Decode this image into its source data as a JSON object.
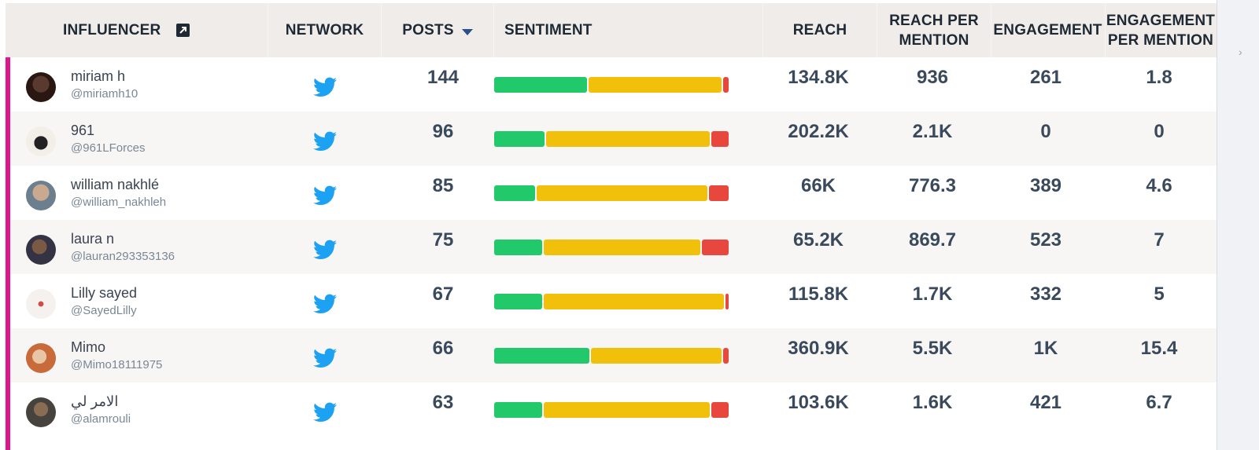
{
  "columns": {
    "influencer": "INFLUENCER",
    "network": "NETWORK",
    "posts": "POSTS",
    "sentiment": "SENTIMENT",
    "reach": "REACH",
    "reach_per_mention": "REACH PER MENTION",
    "engagement": "ENGAGEMENT",
    "engagement_per_mention": "ENGAGEMENT PER MENTION"
  },
  "colors": {
    "accent": "#e0158a",
    "positive": "#21c96a",
    "neutral": "#f1c00a",
    "negative": "#e8473e",
    "twitter": "#1da1f2"
  },
  "rows": [
    {
      "name": "miriam h",
      "handle": "@miriamh10",
      "network": "twitter-icon",
      "posts": "144",
      "sentiment": {
        "positive": 0.4,
        "neutral": 0.57,
        "negative": 0.03
      },
      "reach": "134.8K",
      "reach_per_mention": "936",
      "engagement": "261",
      "engagement_per_mention": "1.8"
    },
    {
      "name": "961",
      "handle": "@961LForces",
      "network": "twitter-icon",
      "posts": "96",
      "sentiment": {
        "positive": 0.22,
        "neutral": 0.7,
        "negative": 0.08
      },
      "reach": "202.2K",
      "reach_per_mention": "2.1K",
      "engagement": "0",
      "engagement_per_mention": "0"
    },
    {
      "name": "william nakhlé",
      "handle": "@william_nakhleh",
      "network": "twitter-icon",
      "posts": "85",
      "sentiment": {
        "positive": 0.18,
        "neutral": 0.73,
        "negative": 0.09
      },
      "reach": "66K",
      "reach_per_mention": "776.3",
      "engagement": "389",
      "engagement_per_mention": "4.6"
    },
    {
      "name": "laura n",
      "handle": "@lauran293353136",
      "network": "twitter-icon",
      "posts": "75",
      "sentiment": {
        "positive": 0.21,
        "neutral": 0.67,
        "negative": 0.12
      },
      "reach": "65.2K",
      "reach_per_mention": "869.7",
      "engagement": "523",
      "engagement_per_mention": "7"
    },
    {
      "name": "Lilly sayed",
      "handle": "@SayedLilly",
      "network": "twitter-icon",
      "posts": "67",
      "sentiment": {
        "positive": 0.21,
        "neutral": 0.77,
        "negative": 0.02
      },
      "reach": "115.8K",
      "reach_per_mention": "1.7K",
      "engagement": "332",
      "engagement_per_mention": "5"
    },
    {
      "name": "Mimo",
      "handle": "@Mimo18111975",
      "network": "twitter-icon",
      "posts": "66",
      "sentiment": {
        "positive": 0.41,
        "neutral": 0.56,
        "negative": 0.03
      },
      "reach": "360.9K",
      "reach_per_mention": "5.5K",
      "engagement": "1K",
      "engagement_per_mention": "15.4"
    },
    {
      "name": "الامر لي",
      "handle": "@alamrouli",
      "network": "twitter-icon",
      "posts": "63",
      "sentiment": {
        "positive": 0.21,
        "neutral": 0.71,
        "negative": 0.08
      },
      "reach": "103.6K",
      "reach_per_mention": "1.6K",
      "engagement": "421",
      "engagement_per_mention": "6.7"
    }
  ]
}
